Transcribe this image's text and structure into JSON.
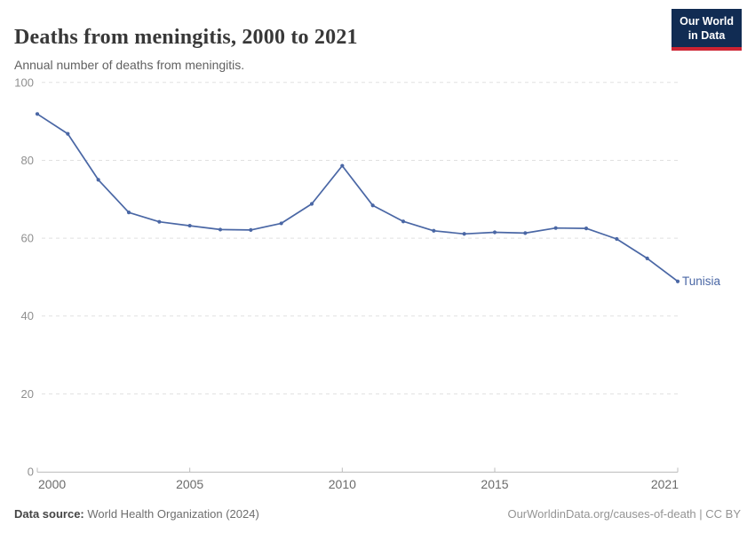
{
  "header": {
    "title": "Deaths from meningitis, 2000 to 2021",
    "subtitle": "Annual number of deaths from meningitis.",
    "logo": {
      "line1": "Our World",
      "line2": "in Data"
    }
  },
  "footer": {
    "source_label": "Data source:",
    "source_value": " World Health Organization (2024)",
    "credit": "OurWorldinData.org/causes-of-death | CC BY"
  },
  "colors": {
    "series_blue": "#4a67a5",
    "gridline": "#e0e0e0",
    "axis": "#bdbdbd",
    "y_tick_label": "#8f8f8f",
    "x_tick_label": "#6b6b6b",
    "logo_bg": "#112c53",
    "logo_red": "#cd2332"
  },
  "chart_data": {
    "type": "line",
    "title": "Deaths from meningitis, 2000 to 2021",
    "subtitle": "Annual number of deaths from meningitis.",
    "xlabel": "",
    "ylabel": "",
    "xlim": [
      2000,
      2021
    ],
    "ylim": [
      0,
      100
    ],
    "grid": "horizontal-dashed",
    "legend_position": "end-of-line-label",
    "xticks": [
      2000,
      2005,
      2010,
      2015,
      2021
    ],
    "yticks": [
      0,
      20,
      40,
      60,
      80,
      100
    ],
    "x": [
      2000,
      2001,
      2002,
      2003,
      2004,
      2005,
      2006,
      2007,
      2008,
      2009,
      2010,
      2011,
      2012,
      2013,
      2014,
      2015,
      2016,
      2017,
      2018,
      2019,
      2020,
      2021
    ],
    "series": [
      {
        "name": "Tunisia",
        "values": [
          91.9,
          86.8,
          75.0,
          66.6,
          64.2,
          63.2,
          62.2,
          62.1,
          63.8,
          68.8,
          78.6,
          68.4,
          64.3,
          61.9,
          61.1,
          61.5,
          61.3,
          62.6,
          62.5,
          59.8,
          54.8,
          48.9
        ]
      }
    ]
  }
}
